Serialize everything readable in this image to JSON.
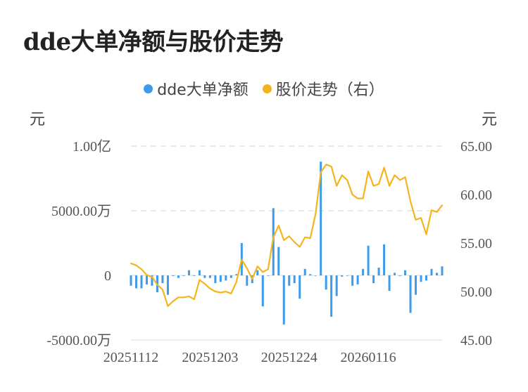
{
  "chart_data": {
    "type": "bar",
    "title": "dde大单净额与股价走势",
    "legend_position": "top-center",
    "grid": true,
    "colors": {
      "bar": "#3d9be9",
      "line": "#f5b41e",
      "grid": "#e3e3e3"
    },
    "y_left": {
      "unit": "元",
      "range": [
        -5000,
        10000
      ],
      "ticks": [
        -5000,
        0,
        5000,
        10000
      ],
      "tick_labels": [
        "-5000.00万",
        "0",
        "5000.00万",
        "1.00亿"
      ]
    },
    "y_right": {
      "unit": "元",
      "range": [
        45,
        65
      ],
      "ticks": [
        45,
        50,
        55,
        60,
        65
      ],
      "tick_labels": [
        "45.00",
        "50.00",
        "55.00",
        "60.00",
        "65.00"
      ]
    },
    "x_tick_labels": [
      {
        "index": 0,
        "label": "20251112"
      },
      {
        "index": 15,
        "label": "20251203"
      },
      {
        "index": 30,
        "label": "20251224"
      },
      {
        "index": 45,
        "label": "20260116"
      }
    ],
    "series": [
      {
        "name": "dde大单净额",
        "kind": "bar",
        "axis": "left",
        "values": [
          -800,
          -1000,
          -1000,
          -700,
          -800,
          -1300,
          -600,
          -1500,
          -50,
          -200,
          0,
          400,
          0,
          400,
          -200,
          -200,
          -600,
          -500,
          -400,
          -200,
          100,
          2500,
          -800,
          -600,
          400,
          -2400,
          0,
          5200,
          2200,
          -3800,
          -800,
          -600,
          -1800,
          500,
          100,
          0,
          8800,
          -1100,
          -3200,
          -1600,
          -100,
          0,
          -800,
          -700,
          500,
          2300,
          -600,
          600,
          2400,
          -1200,
          200,
          0,
          400,
          -2900,
          -1500,
          -500,
          -400,
          500,
          200,
          700
        ]
      },
      {
        "name": "股价走势（右）",
        "kind": "line",
        "axis": "right",
        "values": [
          52.9,
          52.7,
          52.3,
          51.7,
          51.5,
          50.7,
          50.2,
          48.5,
          49.0,
          49.4,
          49.4,
          49.5,
          49.2,
          51.2,
          50.8,
          50.3,
          50.0,
          49.9,
          50.0,
          49.8,
          51.0,
          53.3,
          52.4,
          51.3,
          52.6,
          52.0,
          52.3,
          55.6,
          56.8,
          55.3,
          55.7,
          55.1,
          54.6,
          55.6,
          55.5,
          58.0,
          62.3,
          63.1,
          62.9,
          60.9,
          62.0,
          61.5,
          60.0,
          59.6,
          59.6,
          62.4,
          60.9,
          61.1,
          62.8,
          60.9,
          62.0,
          61.5,
          61.8,
          59.3,
          57.4,
          57.6,
          55.9,
          58.4,
          58.2,
          58.9
        ]
      }
    ]
  }
}
